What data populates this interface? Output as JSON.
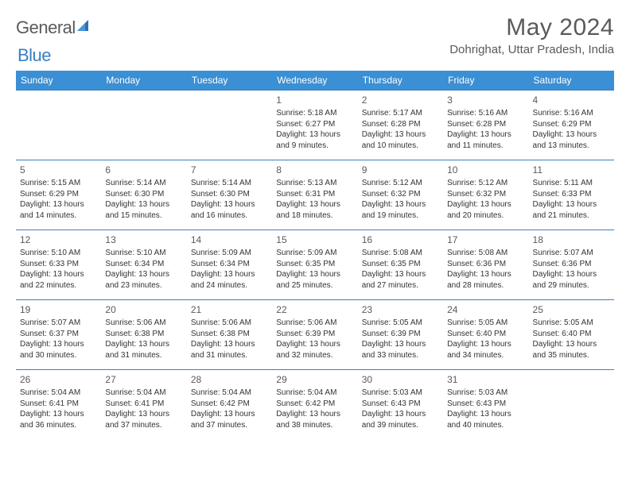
{
  "logo": {
    "text1": "General",
    "text2": "Blue"
  },
  "title": "May 2024",
  "location": "Dohrighat, Uttar Pradesh, India",
  "colors": {
    "header_bg": "#3b8fd4",
    "header_text": "#ffffff",
    "border": "#3b7fc4",
    "text": "#333333",
    "muted": "#5a5a5a"
  },
  "weekdays": [
    "Sunday",
    "Monday",
    "Tuesday",
    "Wednesday",
    "Thursday",
    "Friday",
    "Saturday"
  ],
  "weeks": [
    [
      null,
      null,
      null,
      {
        "n": "1",
        "sr": "5:18 AM",
        "ss": "6:27 PM",
        "dl": "13 hours and 9 minutes."
      },
      {
        "n": "2",
        "sr": "5:17 AM",
        "ss": "6:28 PM",
        "dl": "13 hours and 10 minutes."
      },
      {
        "n": "3",
        "sr": "5:16 AM",
        "ss": "6:28 PM",
        "dl": "13 hours and 11 minutes."
      },
      {
        "n": "4",
        "sr": "5:16 AM",
        "ss": "6:29 PM",
        "dl": "13 hours and 13 minutes."
      }
    ],
    [
      {
        "n": "5",
        "sr": "5:15 AM",
        "ss": "6:29 PM",
        "dl": "13 hours and 14 minutes."
      },
      {
        "n": "6",
        "sr": "5:14 AM",
        "ss": "6:30 PM",
        "dl": "13 hours and 15 minutes."
      },
      {
        "n": "7",
        "sr": "5:14 AM",
        "ss": "6:30 PM",
        "dl": "13 hours and 16 minutes."
      },
      {
        "n": "8",
        "sr": "5:13 AM",
        "ss": "6:31 PM",
        "dl": "13 hours and 18 minutes."
      },
      {
        "n": "9",
        "sr": "5:12 AM",
        "ss": "6:32 PM",
        "dl": "13 hours and 19 minutes."
      },
      {
        "n": "10",
        "sr": "5:12 AM",
        "ss": "6:32 PM",
        "dl": "13 hours and 20 minutes."
      },
      {
        "n": "11",
        "sr": "5:11 AM",
        "ss": "6:33 PM",
        "dl": "13 hours and 21 minutes."
      }
    ],
    [
      {
        "n": "12",
        "sr": "5:10 AM",
        "ss": "6:33 PM",
        "dl": "13 hours and 22 minutes."
      },
      {
        "n": "13",
        "sr": "5:10 AM",
        "ss": "6:34 PM",
        "dl": "13 hours and 23 minutes."
      },
      {
        "n": "14",
        "sr": "5:09 AM",
        "ss": "6:34 PM",
        "dl": "13 hours and 24 minutes."
      },
      {
        "n": "15",
        "sr": "5:09 AM",
        "ss": "6:35 PM",
        "dl": "13 hours and 25 minutes."
      },
      {
        "n": "16",
        "sr": "5:08 AM",
        "ss": "6:35 PM",
        "dl": "13 hours and 27 minutes."
      },
      {
        "n": "17",
        "sr": "5:08 AM",
        "ss": "6:36 PM",
        "dl": "13 hours and 28 minutes."
      },
      {
        "n": "18",
        "sr": "5:07 AM",
        "ss": "6:36 PM",
        "dl": "13 hours and 29 minutes."
      }
    ],
    [
      {
        "n": "19",
        "sr": "5:07 AM",
        "ss": "6:37 PM",
        "dl": "13 hours and 30 minutes."
      },
      {
        "n": "20",
        "sr": "5:06 AM",
        "ss": "6:38 PM",
        "dl": "13 hours and 31 minutes."
      },
      {
        "n": "21",
        "sr": "5:06 AM",
        "ss": "6:38 PM",
        "dl": "13 hours and 31 minutes."
      },
      {
        "n": "22",
        "sr": "5:06 AM",
        "ss": "6:39 PM",
        "dl": "13 hours and 32 minutes."
      },
      {
        "n": "23",
        "sr": "5:05 AM",
        "ss": "6:39 PM",
        "dl": "13 hours and 33 minutes."
      },
      {
        "n": "24",
        "sr": "5:05 AM",
        "ss": "6:40 PM",
        "dl": "13 hours and 34 minutes."
      },
      {
        "n": "25",
        "sr": "5:05 AM",
        "ss": "6:40 PM",
        "dl": "13 hours and 35 minutes."
      }
    ],
    [
      {
        "n": "26",
        "sr": "5:04 AM",
        "ss": "6:41 PM",
        "dl": "13 hours and 36 minutes."
      },
      {
        "n": "27",
        "sr": "5:04 AM",
        "ss": "6:41 PM",
        "dl": "13 hours and 37 minutes."
      },
      {
        "n": "28",
        "sr": "5:04 AM",
        "ss": "6:42 PM",
        "dl": "13 hours and 37 minutes."
      },
      {
        "n": "29",
        "sr": "5:04 AM",
        "ss": "6:42 PM",
        "dl": "13 hours and 38 minutes."
      },
      {
        "n": "30",
        "sr": "5:03 AM",
        "ss": "6:43 PM",
        "dl": "13 hours and 39 minutes."
      },
      {
        "n": "31",
        "sr": "5:03 AM",
        "ss": "6:43 PM",
        "dl": "13 hours and 40 minutes."
      },
      null
    ]
  ],
  "labels": {
    "sunrise": "Sunrise:",
    "sunset": "Sunset:",
    "daylight": "Daylight:"
  }
}
